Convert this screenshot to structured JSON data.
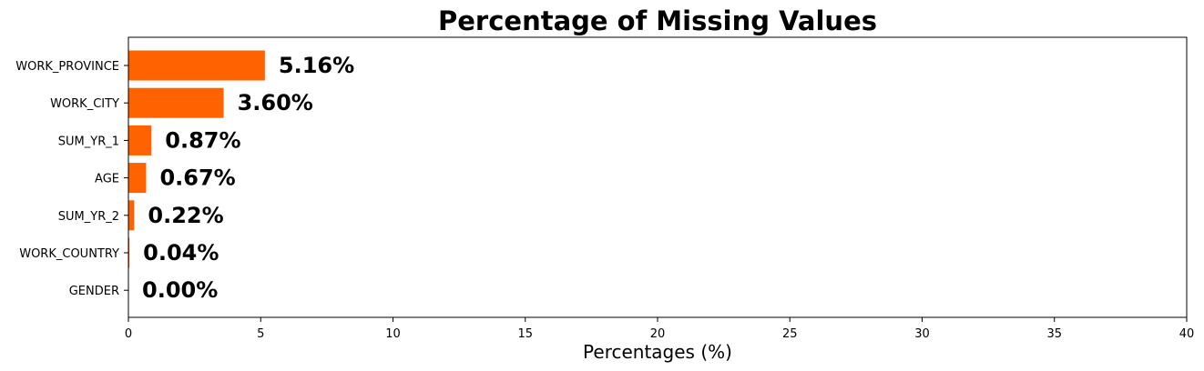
{
  "chart_data": {
    "type": "bar",
    "orientation": "horizontal",
    "title": "Percentage of Missing Values",
    "xlabel": "Percentages (%)",
    "ylabel": "",
    "categories": [
      "WORK_PROVINCE",
      "WORK_CITY",
      "SUM_YR_1",
      "AGE",
      "SUM_YR_2",
      "WORK_COUNTRY",
      "GENDER"
    ],
    "values": [
      5.16,
      3.6,
      0.87,
      0.67,
      0.22,
      0.04,
      0.0
    ],
    "data_labels": [
      "5.16%",
      "3.60%",
      "0.87%",
      "0.67%",
      "0.22%",
      "0.04%",
      "0.00%"
    ],
    "xlim": [
      0,
      40
    ],
    "xticks": [
      "0",
      "5",
      "10",
      "15",
      "20",
      "25",
      "30",
      "35",
      "40"
    ],
    "grid": false,
    "bar_color": "#ff6200"
  }
}
